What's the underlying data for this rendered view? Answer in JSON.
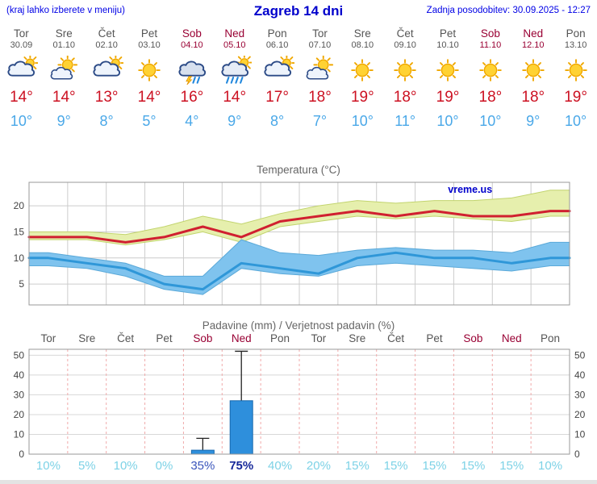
{
  "header": {
    "left_note": "(kraj lahko izberete v meniju)",
    "title": "Zagreb 14 dni",
    "updated": "Zadnja posodobitev: 30.09.2025 - 12:27"
  },
  "colors": {
    "link_blue": "#0000cc",
    "weekend_red": "#990033",
    "weekday_gray": "#555555",
    "tmax_red": "#cc1122",
    "tmin_blue": "#4aa8e8",
    "temp_line_red": "#d02030",
    "temp_line_blue": "#2f97d8",
    "band_green": "#e6efad",
    "band_green_edge": "#c2d46e",
    "band_blue": "#7fc3ee",
    "band_blue_edge": "#5aa9d9",
    "bar_blue": "#2e8fdc",
    "bar_blue_edge": "#1668ae",
    "prob_low": "#7dd2e6",
    "prob_med": "#3a55bb",
    "prob_high": "#16289a"
  },
  "days": [
    {
      "name": "Tor",
      "date": "30.09",
      "weekend": false,
      "icon": "cloud-sun",
      "tmax": 14,
      "tmin": 10
    },
    {
      "name": "Sre",
      "date": "01.10",
      "weekend": false,
      "icon": "partly",
      "tmax": 14,
      "tmin": 9
    },
    {
      "name": "Čet",
      "date": "02.10",
      "weekend": false,
      "icon": "cloud-sun",
      "tmax": 13,
      "tmin": 8
    },
    {
      "name": "Pet",
      "date": "03.10",
      "weekend": false,
      "icon": "sun",
      "tmax": 14,
      "tmin": 5
    },
    {
      "name": "Sob",
      "date": "04.10",
      "weekend": true,
      "icon": "storm",
      "tmax": 16,
      "tmin": 4
    },
    {
      "name": "Ned",
      "date": "05.10",
      "weekend": true,
      "icon": "rain-sun",
      "tmax": 14,
      "tmin": 9
    },
    {
      "name": "Pon",
      "date": "06.10",
      "weekend": false,
      "icon": "cloud-sun",
      "tmax": 17,
      "tmin": 8
    },
    {
      "name": "Tor",
      "date": "07.10",
      "weekend": false,
      "icon": "partly",
      "tmax": 18,
      "tmin": 7
    },
    {
      "name": "Sre",
      "date": "08.10",
      "weekend": false,
      "icon": "sun",
      "tmax": 19,
      "tmin": 10
    },
    {
      "name": "Čet",
      "date": "09.10",
      "weekend": false,
      "icon": "sun",
      "tmax": 18,
      "tmin": 11
    },
    {
      "name": "Pet",
      "date": "10.10",
      "weekend": false,
      "icon": "sun",
      "tmax": 19,
      "tmin": 10
    },
    {
      "name": "Sob",
      "date": "11.10",
      "weekend": true,
      "icon": "sun",
      "tmax": 18,
      "tmin": 10
    },
    {
      "name": "Ned",
      "date": "12.10",
      "weekend": true,
      "icon": "sun",
      "tmax": 18,
      "tmin": 9
    },
    {
      "name": "Pon",
      "date": "13.10",
      "weekend": false,
      "icon": "sun",
      "tmax": 19,
      "tmin": 10
    }
  ],
  "chart_data": [
    {
      "type": "line",
      "title": "Temperatura (°C)",
      "categories": [
        "Tor 30.09",
        "Sre 01.10",
        "Čet 02.10",
        "Pet 03.10",
        "Sob 04.10",
        "Ned 05.10",
        "Pon 06.10",
        "Tor 07.10",
        "Sre 08.10",
        "Čet 09.10",
        "Pet 10.10",
        "Sob 11.10",
        "Ned 12.10",
        "Pon 13.10"
      ],
      "ylim": [
        1,
        24.5
      ],
      "yticks": [
        5,
        10,
        15,
        20
      ],
      "watermark": "vreme.us",
      "series": [
        {
          "name": "tmax",
          "values": [
            14,
            14,
            13,
            14,
            16,
            14,
            17,
            18,
            19,
            18,
            19,
            18,
            18,
            19
          ]
        },
        {
          "name": "tmax_hi",
          "values": [
            15,
            15,
            14.5,
            16,
            18,
            16.5,
            18.5,
            20,
            21,
            20.5,
            21,
            21,
            21.5,
            23
          ]
        },
        {
          "name": "tmax_lo",
          "values": [
            13.5,
            13.5,
            12.5,
            13.5,
            15,
            13,
            16,
            17,
            18,
            17.5,
            18,
            17.5,
            17,
            18
          ]
        },
        {
          "name": "tmin",
          "values": [
            10,
            9,
            8,
            5,
            4,
            9,
            8,
            7,
            10,
            11,
            10,
            10,
            9,
            10
          ]
        },
        {
          "name": "tmin_hi",
          "values": [
            11,
            10,
            9,
            6.5,
            6.5,
            13.5,
            11,
            10.5,
            11.5,
            12,
            11.5,
            11.5,
            11,
            13
          ]
        },
        {
          "name": "tmin_lo",
          "values": [
            8.5,
            8,
            6.5,
            4,
            3,
            8,
            7,
            6.5,
            8.5,
            9,
            8.5,
            8,
            7.5,
            8.5
          ]
        }
      ]
    },
    {
      "type": "bar",
      "title": "Padavine (mm) / Verjetnost padavin (%)",
      "categories": [
        "Tor",
        "Sre",
        "Čet",
        "Pet",
        "Sob",
        "Ned",
        "Pon",
        "Tor",
        "Sre",
        "Čet",
        "Pet",
        "Sob",
        "Ned",
        "Pon"
      ],
      "ylim": [
        0,
        53
      ],
      "yticks": [
        0,
        10,
        20,
        30,
        40,
        50
      ],
      "precip_mm": [
        0,
        0,
        0,
        0,
        2,
        27,
        0,
        0,
        0,
        0,
        0,
        0,
        0,
        0
      ],
      "precip_max_mm": [
        0,
        0,
        0,
        0,
        8,
        52,
        0,
        0,
        0,
        0,
        0,
        0,
        0,
        0
      ],
      "probability_pct": [
        10,
        5,
        10,
        0,
        35,
        75,
        40,
        20,
        15,
        15,
        15,
        15,
        15,
        10
      ],
      "probability_emphasis": [
        "low",
        "low",
        "low",
        "low",
        "med",
        "high",
        "low",
        "low",
        "low",
        "low",
        "low",
        "low",
        "low",
        "low"
      ]
    }
  ]
}
